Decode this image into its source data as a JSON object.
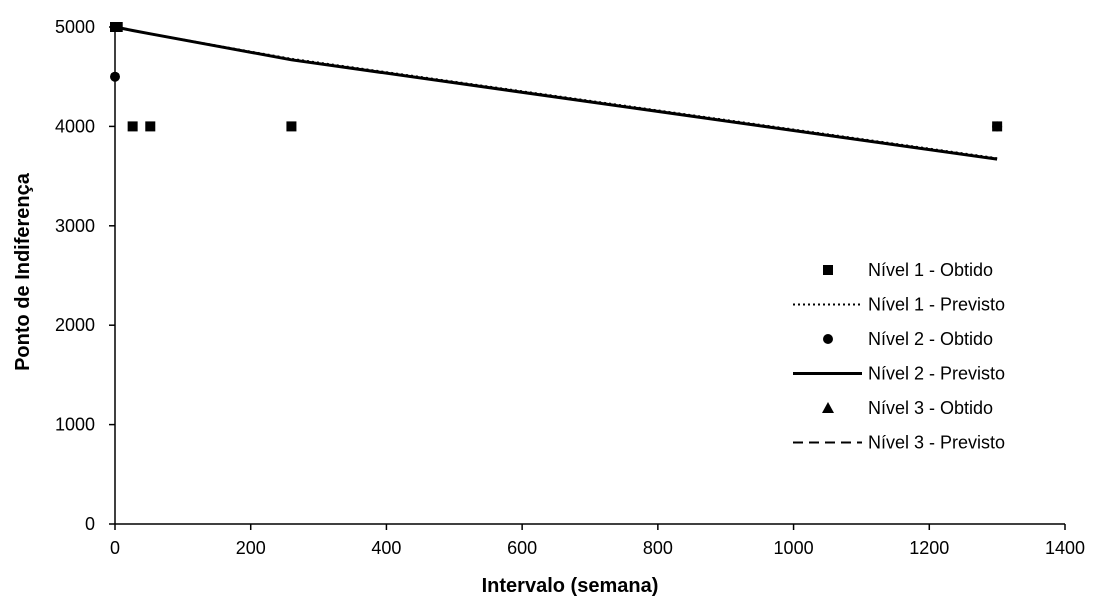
{
  "chart_data": {
    "type": "scatter",
    "title": "",
    "xlabel": "Intervalo (semana)",
    "ylabel": "Ponto de Indiferença",
    "xlim": [
      0,
      1400
    ],
    "ylim": [
      0,
      5000
    ],
    "xticks": [
      0,
      200,
      400,
      600,
      800,
      1000,
      1200,
      1400
    ],
    "yticks": [
      0,
      1000,
      2000,
      3000,
      4000,
      5000
    ],
    "grid": false,
    "legend_position": "right",
    "series": [
      {
        "name": "Nível 1 - Obtido",
        "kind": "points",
        "marker": "square",
        "x": [
          0,
          4,
          26,
          52,
          260,
          1300
        ],
        "y": [
          5000,
          5000,
          4000,
          4000,
          4000,
          4000
        ]
      },
      {
        "name": "Nível 1 - Previsto",
        "kind": "line",
        "dash": "dotted",
        "x": [
          0,
          4,
          26,
          52,
          260,
          1300
        ],
        "y": [
          5000,
          4995,
          4965,
          4932,
          4680,
          3680
        ]
      },
      {
        "name": "Nível 2 - Obtido",
        "kind": "points",
        "marker": "circle",
        "x": [
          0,
          1300
        ],
        "y": [
          4500,
          4000
        ]
      },
      {
        "name": "Nível 2 - Previsto",
        "kind": "line",
        "dash": "solid",
        "x": [
          0,
          4,
          26,
          52,
          260,
          1300
        ],
        "y": [
          5000,
          4995,
          4965,
          4932,
          4670,
          3670
        ]
      },
      {
        "name": "Nível 3 - Obtido",
        "kind": "points",
        "marker": "triangle",
        "x": [],
        "y": []
      },
      {
        "name": "Nível 3 - Previsto",
        "kind": "line",
        "dash": "dashed",
        "x": [
          0,
          4,
          26,
          52,
          260,
          1300
        ],
        "y": [
          5000,
          4995,
          4963,
          4930,
          4672,
          3675
        ]
      }
    ]
  }
}
